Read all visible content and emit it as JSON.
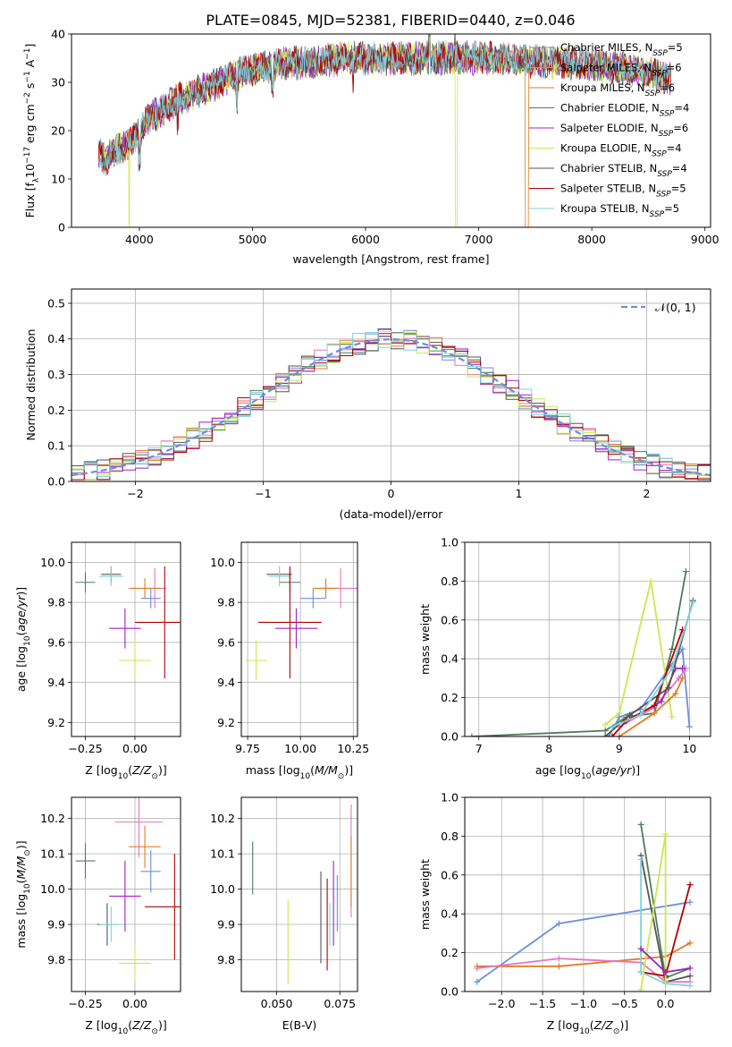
{
  "figure_title": "PLATE=0845, MJD=52381, FIBERID=0440, z=0.046",
  "colors": {
    "Chabrier MILES": "#6b8fd9",
    "Salpeter MILES": "#e377c2",
    "Kroupa MILES": "#e07b22",
    "Chabrier ELODIE": "#4f7d57",
    "Salpeter ELODIE": "#a020c8",
    "Kroupa ELODIE": "#cfe650",
    "Chabrier STELIB": "#555555",
    "Salpeter STELIB": "#b20000",
    "Kroupa STELIB": "#7fd3dc",
    "normal": "#6b8fd9",
    "grid": "#b0b0b0"
  },
  "legend_spectrum": [
    {
      "name": "Chabrier MILES",
      "nssp": "5"
    },
    {
      "name": "Salpeter MILES",
      "nssp": "6"
    },
    {
      "name": "Kroupa MILES",
      "nssp": "6"
    },
    {
      "name": "Chabrier ELODIE",
      "nssp": "4"
    },
    {
      "name": "Salpeter ELODIE",
      "nssp": "6"
    },
    {
      "name": "Kroupa ELODIE",
      "nssp": "4"
    },
    {
      "name": "Chabrier STELIB",
      "nssp": "4"
    },
    {
      "name": "Salpeter STELIB",
      "nssp": "5"
    },
    {
      "name": "Kroupa STELIB",
      "nssp": "5"
    }
  ],
  "chart_data": [
    {
      "id": "spectrum",
      "type": "line",
      "xlabel": "wavelength [Angstrom, rest frame]",
      "ylabel": "Flux [f_λ10^-17 erg cm^-2 s^-1 A^-1]",
      "xlim": [
        3400,
        9050
      ],
      "ylim": [
        0,
        40
      ],
      "xticks": [
        4000,
        5000,
        6000,
        7000,
        8000,
        9000
      ],
      "yticks": [
        0,
        10,
        20,
        30,
        40
      ],
      "grid": false,
      "legend_position": "top-right",
      "continuum": [
        [
          3640,
          15
        ],
        [
          3700,
          14
        ],
        [
          3800,
          16
        ],
        [
          3900,
          17
        ],
        [
          4000,
          20
        ],
        [
          4100,
          23
        ],
        [
          4200,
          24
        ],
        [
          4300,
          26
        ],
        [
          4500,
          28
        ],
        [
          4700,
          30
        ],
        [
          4900,
          32
        ],
        [
          5100,
          33
        ],
        [
          5300,
          34
        ],
        [
          5500,
          34
        ],
        [
          5800,
          35
        ],
        [
          6200,
          35
        ],
        [
          6600,
          35
        ],
        [
          7000,
          35
        ],
        [
          7400,
          34.5
        ],
        [
          7800,
          34
        ],
        [
          8200,
          33
        ],
        [
          8500,
          32
        ],
        [
          8650,
          31
        ]
      ],
      "glitches": [
        {
          "x": 3910,
          "y": 0
        },
        {
          "x": 6800,
          "y": 0
        },
        {
          "x": 7420,
          "y": 0
        },
        {
          "x": 6790,
          "y": 42
        }
      ]
    },
    {
      "id": "residuals",
      "type": "step",
      "xlabel": "(data-model)/error",
      "ylabel": "Normed distribution",
      "xlim": [
        -2.5,
        2.5
      ],
      "ylim": [
        0,
        0.54
      ],
      "xticks": [
        -2,
        -1,
        0,
        1,
        2
      ],
      "yticks": [
        0.0,
        0.1,
        0.2,
        0.3,
        0.4,
        0.5
      ],
      "grid": true,
      "legend_position": "top-right",
      "legend_label": "𝒩(0, 1)",
      "bin_width": 0.1
    },
    {
      "id": "age-vs-Z",
      "type": "errorbar",
      "xlabel": "Z [log10(Z/Z⊙)]",
      "ylabel": "age  [log10(age/yr)]",
      "xlim": [
        -0.32,
        0.23
      ],
      "ylim": [
        9.13,
        10.1
      ],
      "xticks": [
        -0.25,
        0.0
      ],
      "xticklabels": [
        "−0.25",
        "0.00"
      ],
      "yticks": [
        9.2,
        9.4,
        9.6,
        9.8,
        10.0
      ],
      "grid": true,
      "points": [
        {
          "s": "Chabrier ELODIE",
          "x": -0.25,
          "xerr": 0.05,
          "y": 9.9,
          "yerr": 0.05
        },
        {
          "s": "Chabrier STELIB",
          "x": -0.12,
          "xerr": 0.05,
          "y": 9.94,
          "yerr": 0.04
        },
        {
          "s": "Kroupa STELIB",
          "x": -0.12,
          "xerr": 0.06,
          "y": 9.93,
          "yerr": 0.05
        },
        {
          "s": "Chabrier MILES",
          "x": 0.08,
          "xerr": 0.05,
          "y": 9.82,
          "yerr": 0.05
        },
        {
          "s": "Salpeter MILES",
          "x": 0.1,
          "xerr": 0.06,
          "y": 9.87,
          "yerr": 0.1
        },
        {
          "s": "Kroupa MILES",
          "x": 0.05,
          "xerr": 0.08,
          "y": 9.87,
          "yerr": 0.05
        },
        {
          "s": "Salpeter STELIB",
          "x": 0.15,
          "xerr": 0.15,
          "y": 9.7,
          "yerr": 0.28
        },
        {
          "s": "Salpeter ELODIE",
          "x": -0.05,
          "xerr": 0.08,
          "y": 9.67,
          "yerr": 0.1
        },
        {
          "s": "Kroupa ELODIE",
          "x": 0.0,
          "xerr": 0.08,
          "y": 9.51,
          "yerr": 0.1
        }
      ]
    },
    {
      "id": "age-vs-mass",
      "type": "errorbar",
      "xlabel": "mass [log10(M/M⊙)]",
      "ylabel": "",
      "xlim": [
        9.72,
        10.27
      ],
      "ylim": [
        9.13,
        10.1
      ],
      "xticks": [
        9.75,
        10.0,
        10.25
      ],
      "xticklabels": [
        "9.75",
        "10.00",
        "10.25"
      ],
      "yticks": [
        9.2,
        9.4,
        9.6,
        9.8,
        10.0
      ],
      "grid": true,
      "points": [
        {
          "s": "Chabrier ELODIE",
          "x": 9.95,
          "xerr": 0.05,
          "y": 9.9,
          "yerr": 0.05
        },
        {
          "s": "Chabrier STELIB",
          "x": 9.9,
          "xerr": 0.06,
          "y": 9.94,
          "yerr": 0.04
        },
        {
          "s": "Kroupa STELIB",
          "x": 9.9,
          "xerr": 0.05,
          "y": 9.93,
          "yerr": 0.05
        },
        {
          "s": "Chabrier MILES",
          "x": 10.06,
          "xerr": 0.06,
          "y": 9.82,
          "yerr": 0.05
        },
        {
          "s": "Salpeter MILES",
          "x": 10.19,
          "xerr": 0.1,
          "y": 9.87,
          "yerr": 0.1
        },
        {
          "s": "Kroupa MILES",
          "x": 10.12,
          "xerr": 0.06,
          "y": 9.87,
          "yerr": 0.05
        },
        {
          "s": "Salpeter STELIB",
          "x": 9.95,
          "xerr": 0.15,
          "y": 9.7,
          "yerr": 0.28
        },
        {
          "s": "Salpeter ELODIE",
          "x": 9.98,
          "xerr": 0.1,
          "y": 9.67,
          "yerr": 0.1
        },
        {
          "s": "Kroupa ELODIE",
          "x": 9.79,
          "xerr": 0.05,
          "y": 9.51,
          "yerr": 0.1
        }
      ]
    },
    {
      "id": "mass-vs-Z",
      "type": "errorbar",
      "xlabel": "Z [log10(Z/Z⊙)]",
      "ylabel": "mass [log10(M/M⊙)]",
      "xlim": [
        -0.32,
        0.23
      ],
      "ylim": [
        9.71,
        10.26
      ],
      "xticks": [
        -0.25,
        0.0
      ],
      "xticklabels": [
        "−0.25",
        "0.00"
      ],
      "yticks": [
        9.8,
        9.9,
        10.0,
        10.1,
        10.2
      ],
      "grid": true,
      "points": [
        {
          "s": "Chabrier ELODIE",
          "x": -0.25,
          "xerr": 0.05,
          "y": 10.08,
          "yerr": 0.05
        },
        {
          "s": "Chabrier STELIB",
          "x": -0.14,
          "xerr": 0.05,
          "y": 9.9,
          "yerr": 0.06
        },
        {
          "s": "Kroupa STELIB",
          "x": -0.12,
          "xerr": 0.06,
          "y": 9.9,
          "yerr": 0.05
        },
        {
          "s": "Chabrier MILES",
          "x": 0.08,
          "xerr": 0.05,
          "y": 10.05,
          "yerr": 0.06
        },
        {
          "s": "Salpeter MILES",
          "x": 0.02,
          "xerr": 0.12,
          "y": 10.19,
          "yerr": 0.1
        },
        {
          "s": "Kroupa MILES",
          "x": 0.05,
          "xerr": 0.08,
          "y": 10.12,
          "yerr": 0.06
        },
        {
          "s": "Salpeter STELIB",
          "x": 0.2,
          "xerr": 0.15,
          "y": 9.95,
          "yerr": 0.15
        },
        {
          "s": "Salpeter ELODIE",
          "x": -0.05,
          "xerr": 0.08,
          "y": 9.98,
          "yerr": 0.1
        },
        {
          "s": "Kroupa ELODIE",
          "x": 0.0,
          "xerr": 0.08,
          "y": 9.79,
          "yerr": 0.05
        }
      ]
    },
    {
      "id": "mass-vs-EBV",
      "type": "errorbar",
      "xlabel": "E(B-V)",
      "ylabel": "",
      "xlim": [
        0.036,
        0.082
      ],
      "ylim": [
        9.71,
        10.26
      ],
      "xticks": [
        0.05,
        0.075
      ],
      "xticklabels": [
        "0.050",
        "0.075"
      ],
      "yticks": [
        9.8,
        9.9,
        10.0,
        10.1,
        10.2
      ],
      "grid": true,
      "points": [
        {
          "s": "Chabrier ELODIE",
          "x": 0.0405,
          "xerr": 0,
          "y": 10.06,
          "yerr": 0.075
        },
        {
          "s": "Kroupa ELODIE",
          "x": 0.0545,
          "xerr": 0,
          "y": 9.85,
          "yerr": 0.12
        },
        {
          "s": "Chabrier STELIB",
          "x": 0.0675,
          "xerr": 0,
          "y": 9.92,
          "yerr": 0.13
        },
        {
          "s": "Salpeter STELIB",
          "x": 0.07,
          "xerr": 0,
          "y": 9.9,
          "yerr": 0.13
        },
        {
          "s": "Kroupa STELIB",
          "x": 0.071,
          "xerr": 0,
          "y": 9.9,
          "yerr": 0.06
        },
        {
          "s": "Salpeter ELODIE",
          "x": 0.0725,
          "xerr": 0,
          "y": 9.96,
          "yerr": 0.12
        },
        {
          "s": "Chabrier MILES",
          "x": 0.074,
          "xerr": 0,
          "y": 9.96,
          "yerr": 0.08
        },
        {
          "s": "Salpeter MILES",
          "x": 0.0795,
          "xerr": 0,
          "y": 10.08,
          "yerr": 0.16
        },
        {
          "s": "Kroupa MILES",
          "x": 0.0795,
          "xerr": 0,
          "y": 10.05,
          "yerr": 0.1
        }
      ]
    },
    {
      "id": "weight-vs-age",
      "type": "line",
      "xlabel": "age  [log10(age/yr)]",
      "ylabel": "mass weight",
      "xlim": [
        6.8,
        10.3
      ],
      "ylim": [
        0,
        1.0
      ],
      "xticks": [
        7,
        8,
        9,
        10
      ],
      "yticks": [
        0.0,
        0.2,
        0.4,
        0.6,
        0.8,
        1.0
      ],
      "grid": true,
      "series": [
        {
          "s": "Chabrier ELODIE",
          "points": [
            [
              6.9,
              0.0
            ],
            [
              8.8,
              0.03
            ],
            [
              9.1,
              0.1
            ],
            [
              9.5,
              0.12
            ],
            [
              9.75,
              0.45
            ],
            [
              9.95,
              0.85
            ]
          ]
        },
        {
          "s": "Kroupa ELODIE",
          "points": [
            [
              8.8,
              0.06
            ],
            [
              9.0,
              0.12
            ],
            [
              9.45,
              0.8
            ],
            [
              9.75,
              0.1
            ]
          ]
        },
        {
          "s": "Chabrier MILES",
          "points": [
            [
              8.85,
              0.0
            ],
            [
              9.0,
              0.1
            ],
            [
              9.3,
              0.14
            ],
            [
              9.9,
              0.45
            ],
            [
              10.0,
              0.05
            ]
          ]
        },
        {
          "s": "Salpeter MILES",
          "points": [
            [
              9.0,
              0.05
            ],
            [
              9.5,
              0.15
            ],
            [
              9.85,
              0.3
            ],
            [
              9.95,
              0.35
            ]
          ]
        },
        {
          "s": "Kroupa MILES",
          "points": [
            [
              9.0,
              0.0
            ],
            [
              9.5,
              0.12
            ],
            [
              9.8,
              0.22
            ],
            [
              9.9,
              0.3
            ]
          ]
        },
        {
          "s": "Salpeter ELODIE",
          "points": [
            [
              9.1,
              0.08
            ],
            [
              9.6,
              0.18
            ],
            [
              9.8,
              0.35
            ],
            [
              9.9,
              0.35
            ]
          ]
        },
        {
          "s": "Chabrier STELIB",
          "points": [
            [
              8.8,
              0.0
            ],
            [
              9.15,
              0.11
            ],
            [
              9.7,
              0.25
            ],
            [
              10.05,
              0.7
            ]
          ]
        },
        {
          "s": "Salpeter STELIB",
          "points": [
            [
              8.9,
              0.0
            ],
            [
              9.1,
              0.08
            ],
            [
              9.5,
              0.16
            ],
            [
              9.9,
              0.55
            ]
          ]
        },
        {
          "s": "Kroupa STELIB",
          "points": [
            [
              8.9,
              0.05
            ],
            [
              9.3,
              0.11
            ],
            [
              9.75,
              0.35
            ],
            [
              10.05,
              0.69
            ]
          ]
        }
      ]
    },
    {
      "id": "weight-vs-Z",
      "type": "line",
      "xlabel": "Z [log10(Z/Z⊙)]",
      "ylabel": "mass weight",
      "xlim": [
        -2.45,
        0.55
      ],
      "ylim": [
        0,
        1.0
      ],
      "xticks": [
        -2.0,
        -1.5,
        -1.0,
        -0.5,
        0.0
      ],
      "xticklabels": [
        "−2.0",
        "−1.5",
        "−1.0",
        "−0.5",
        "0.0"
      ],
      "yticks": [
        0.0,
        0.2,
        0.4,
        0.6,
        0.8,
        1.0
      ],
      "grid": true,
      "series": [
        {
          "s": "Chabrier MILES",
          "points": [
            [
              -2.3,
              0.05
            ],
            [
              -1.3,
              0.35
            ],
            [
              0.3,
              0.46
            ]
          ]
        },
        {
          "s": "Kroupa MILES",
          "points": [
            [
              -2.3,
              0.13
            ],
            [
              -1.3,
              0.13
            ],
            [
              0.0,
              0.18
            ],
            [
              0.3,
              0.25
            ]
          ]
        },
        {
          "s": "Salpeter MILES",
          "points": [
            [
              -2.3,
              0.12
            ],
            [
              -1.3,
              0.17
            ],
            [
              -0.3,
              0.15
            ],
            [
              0.0,
              0.05
            ],
            [
              0.3,
              0.05
            ]
          ]
        },
        {
          "s": "Chabrier ELODIE",
          "points": [
            [
              -0.3,
              0.86
            ],
            [
              0.0,
              0.07
            ],
            [
              0.3,
              0.12
            ]
          ]
        },
        {
          "s": "Chabrier STELIB",
          "points": [
            [
              -0.3,
              0.7
            ],
            [
              0.0,
              0.05
            ],
            [
              0.3,
              0.08
            ]
          ]
        },
        {
          "s": "Salpeter STELIB",
          "points": [
            [
              -0.3,
              0.1
            ],
            [
              0.0,
              0.08
            ],
            [
              0.3,
              0.55
            ]
          ]
        },
        {
          "s": "Kroupa STELIB",
          "points": [
            [
              -0.3,
              0.68
            ],
            [
              -0.3,
              0.1
            ],
            [
              0.0,
              0.04
            ],
            [
              0.3,
              0.03
            ]
          ]
        },
        {
          "s": "Kroupa ELODIE",
          "points": [
            [
              -0.3,
              0.01
            ],
            [
              0.0,
              0.81
            ],
            [
              0.0,
              0.05
            ]
          ]
        },
        {
          "s": "Salpeter ELODIE",
          "points": [
            [
              -0.3,
              0.22
            ],
            [
              0.0,
              0.1
            ],
            [
              0.3,
              0.12
            ]
          ]
        }
      ]
    }
  ]
}
